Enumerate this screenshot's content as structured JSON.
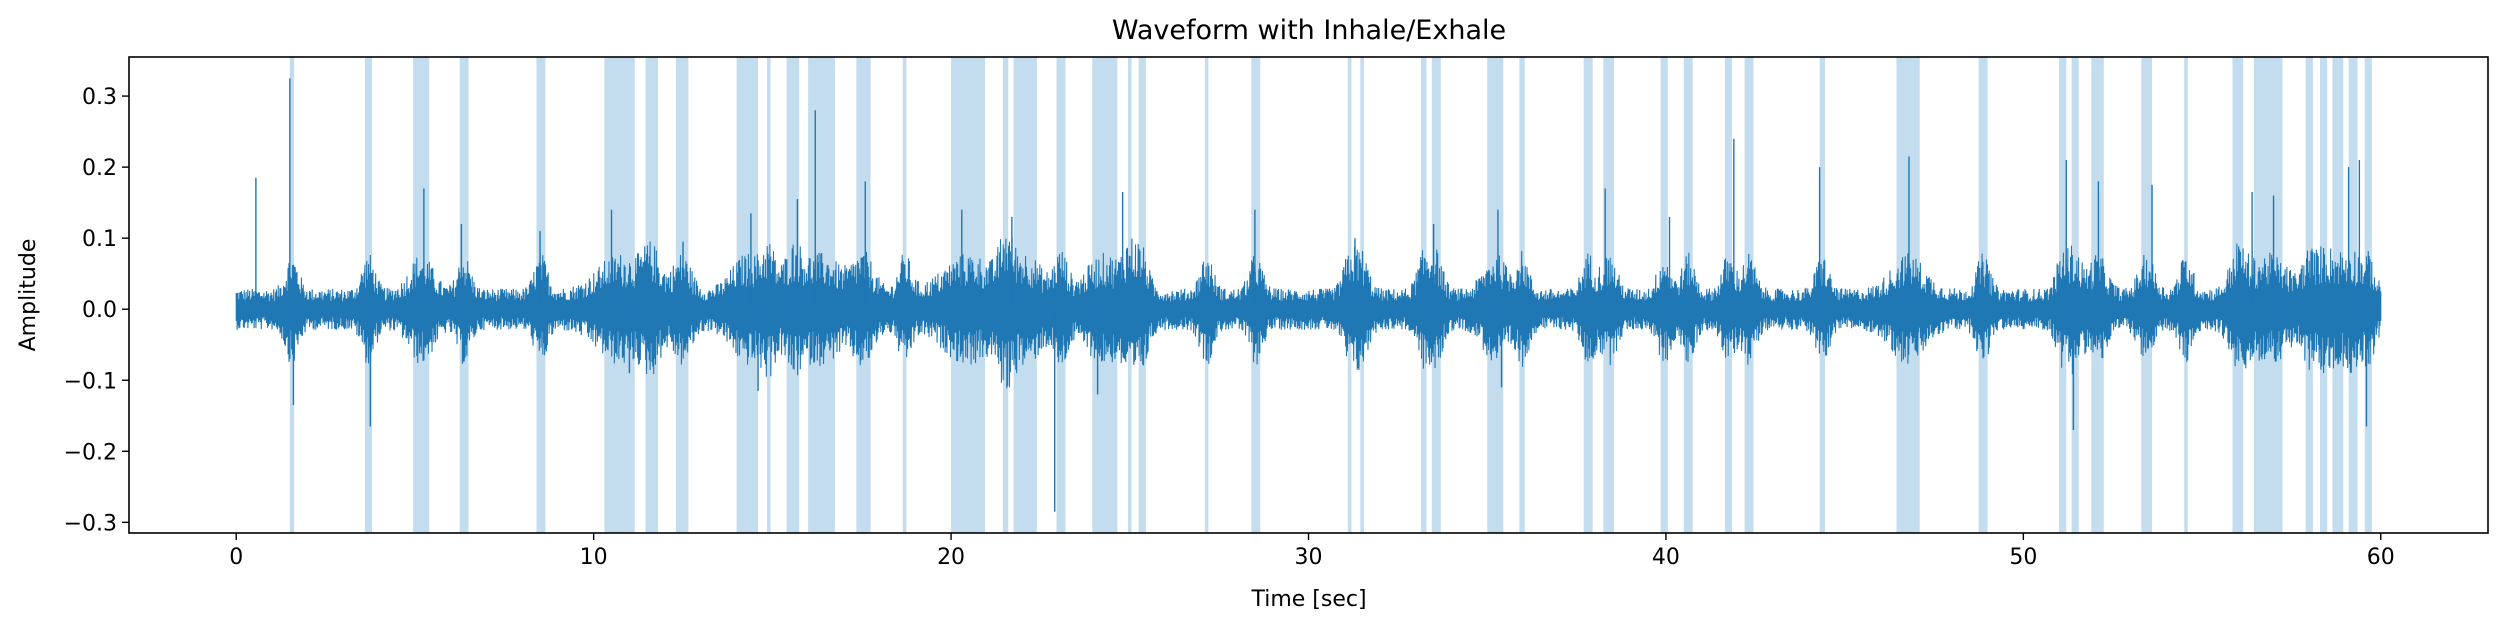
{
  "chart_data": {
    "type": "line",
    "title": "Waveform with Inhale/Exhale",
    "xlabel": "Time [sec]",
    "ylabel": "Amplitude",
    "xlim": [
      -3,
      63
    ],
    "ylim": [
      -0.315,
      0.355
    ],
    "x_ticks": [
      0,
      10,
      20,
      30,
      40,
      50,
      60
    ],
    "y_ticks": [
      -0.3,
      -0.2,
      -0.1,
      0.0,
      0.1,
      0.2,
      0.3
    ],
    "grid": false,
    "line_color": "#1f77b4",
    "span_color": "#9ec6e4",
    "series": [
      {
        "duration_sec": 60,
        "baseline_amplitude": 0.02,
        "peaks": [
          {
            "t": 0.55,
            "v": 0.185
          },
          {
            "t": 1.5,
            "v": 0.325
          },
          {
            "t": 1.6,
            "v": -0.135
          },
          {
            "t": 3.75,
            "v": -0.165
          },
          {
            "t": 5.25,
            "v": 0.17
          },
          {
            "t": 6.3,
            "v": 0.12
          },
          {
            "t": 8.5,
            "v": 0.11
          },
          {
            "t": 10.5,
            "v": 0.14
          },
          {
            "t": 11.0,
            "v": -0.09
          },
          {
            "t": 12.5,
            "v": 0.095
          },
          {
            "t": 14.4,
            "v": 0.135
          },
          {
            "t": 14.6,
            "v": -0.115
          },
          {
            "t": 15.7,
            "v": 0.155
          },
          {
            "t": 16.2,
            "v": 0.28
          },
          {
            "t": 17.6,
            "v": 0.18
          },
          {
            "t": 20.3,
            "v": 0.14
          },
          {
            "t": 21.7,
            "v": 0.13
          },
          {
            "t": 22.9,
            "v": -0.285
          },
          {
            "t": 24.1,
            "v": -0.12
          },
          {
            "t": 24.8,
            "v": 0.165
          },
          {
            "t": 28.5,
            "v": 0.14
          },
          {
            "t": 31.3,
            "v": 0.1
          },
          {
            "t": 33.5,
            "v": 0.12
          },
          {
            "t": 35.3,
            "v": 0.14
          },
          {
            "t": 35.4,
            "v": -0.11
          },
          {
            "t": 38.3,
            "v": 0.17
          },
          {
            "t": 40.1,
            "v": 0.13
          },
          {
            "t": 41.9,
            "v": 0.24
          },
          {
            "t": 44.3,
            "v": 0.2
          },
          {
            "t": 46.8,
            "v": 0.215
          },
          {
            "t": 51.2,
            "v": 0.21
          },
          {
            "t": 51.4,
            "v": -0.17
          },
          {
            "t": 52.1,
            "v": 0.18
          },
          {
            "t": 53.6,
            "v": 0.175
          },
          {
            "t": 56.4,
            "v": 0.165
          },
          {
            "t": 57.0,
            "v": 0.16
          },
          {
            "t": 59.1,
            "v": 0.2
          },
          {
            "t": 59.4,
            "v": 0.21
          },
          {
            "t": 59.6,
            "v": -0.165
          }
        ]
      }
    ],
    "spans": [
      [
        1.5,
        1.62
      ],
      [
        3.6,
        3.8
      ],
      [
        4.95,
        5.4
      ],
      [
        6.25,
        6.5
      ],
      [
        8.4,
        8.65
      ],
      [
        10.3,
        11.15
      ],
      [
        11.45,
        11.8
      ],
      [
        12.3,
        12.65
      ],
      [
        14.0,
        14.6
      ],
      [
        14.85,
        14.95
      ],
      [
        15.4,
        15.75
      ],
      [
        16.0,
        16.75
      ],
      [
        17.35,
        17.75
      ],
      [
        18.65,
        18.75
      ],
      [
        20.0,
        20.95
      ],
      [
        21.45,
        21.6
      ],
      [
        21.75,
        22.4
      ],
      [
        22.95,
        23.2
      ],
      [
        23.95,
        24.65
      ],
      [
        24.95,
        25.05
      ],
      [
        25.25,
        25.45
      ],
      [
        27.1,
        27.2
      ],
      [
        28.4,
        28.65
      ],
      [
        31.1,
        31.2
      ],
      [
        31.45,
        31.55
      ],
      [
        33.15,
        33.3
      ],
      [
        33.45,
        33.7
      ],
      [
        35.0,
        35.45
      ],
      [
        35.9,
        36.05
      ],
      [
        37.7,
        37.95
      ],
      [
        38.25,
        38.55
      ],
      [
        39.85,
        40.05
      ],
      [
        40.5,
        40.75
      ],
      [
        41.65,
        41.85
      ],
      [
        42.2,
        42.45
      ],
      [
        44.3,
        44.45
      ],
      [
        46.45,
        47.1
      ],
      [
        48.75,
        49.0
      ],
      [
        51.0,
        51.2
      ],
      [
        51.35,
        51.55
      ],
      [
        51.9,
        52.25
      ],
      [
        53.3,
        53.6
      ],
      [
        54.5,
        54.6
      ],
      [
        55.85,
        56.15
      ],
      [
        56.45,
        57.25
      ],
      [
        57.9,
        58.1
      ],
      [
        58.3,
        58.5
      ],
      [
        58.65,
        58.95
      ],
      [
        59.1,
        59.35
      ],
      [
        59.55,
        59.75
      ]
    ]
  }
}
